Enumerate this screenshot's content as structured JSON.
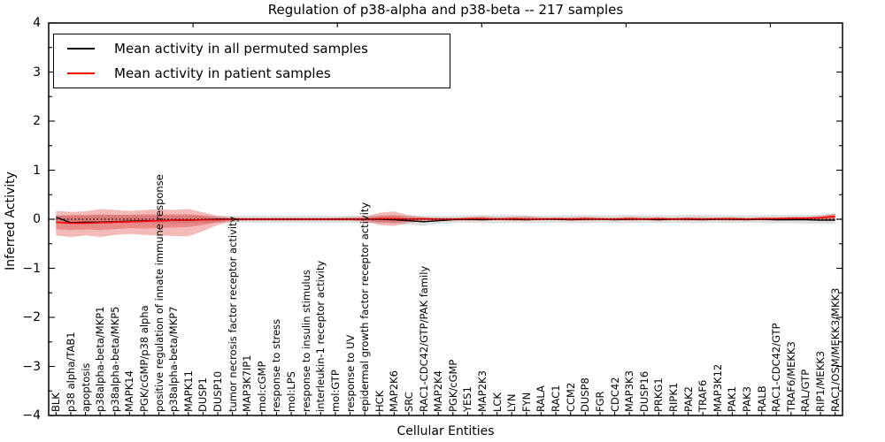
{
  "chart_data": {
    "type": "line",
    "title": "Regulation of p38-alpha and p38-beta -- 217 samples",
    "xlabel": "Cellular Entities",
    "ylabel": "Inferred Activity",
    "ylim": [
      -4,
      4
    ],
    "grid": false,
    "legend_position": "upper left",
    "zero_line": {
      "value": 0,
      "style": "dotted",
      "color": "#000000"
    },
    "y_ticks": [
      {
        "value": 4,
        "label": "4"
      },
      {
        "value": 3,
        "label": "3"
      },
      {
        "value": 2,
        "label": "2"
      },
      {
        "value": 1,
        "label": "1"
      },
      {
        "value": 0,
        "label": "0"
      },
      {
        "value": -1,
        "label": "−1"
      },
      {
        "value": -2,
        "label": "−2"
      },
      {
        "value": -3,
        "label": "−3"
      },
      {
        "value": -4,
        "label": "−4"
      }
    ],
    "categories": [
      "BLK",
      "p38 alpha/TAB1",
      "apoptosis",
      "p38alpha-beta/MKP1",
      "p38alpha-beta/MKP5",
      "MAPK14",
      "PGK/cGMP/p38 alpha",
      "positive regulation of innate immune response",
      "p38alpha-beta/MKP7",
      "MAPK11",
      "DUSP1",
      "DUSP10",
      "tumor necrosis factor receptor activity",
      "MAP3K7IP1",
      "mol:cGMP",
      "response to stress",
      "mol:LPS",
      "response to insulin stimulus",
      "interleukin-1 receptor activity",
      "mol:GTP",
      "response to UV",
      "epidermal growth factor receptor activity",
      "HCK",
      "MAP2K6",
      "SRC",
      "RAC1-CDC42/GTP/PAK family",
      "MAP2K4",
      "PGK/cGMP",
      "YES1",
      "MAP2K3",
      "LCK",
      "LYN",
      "FYN",
      "RALA",
      "RAC1",
      "CCM2",
      "DUSP8",
      "FGR",
      "CDC42",
      "MAP3K3",
      "DUSP16",
      "PRKG1",
      "RIPK1",
      "PAK2",
      "TRAF6",
      "MAP3K12",
      "PAK1",
      "PAK3",
      "RALB",
      "RAC1-CDC42/GTP",
      "TRAF6/MEKK3",
      "RAL/GTP",
      "RIP1/MEKK3",
      "RAC1/OSM/MEKK3/MKK3"
    ],
    "series": [
      {
        "name": "Mean activity in all permuted samples",
        "color": "#000000",
        "values": [
          0.04,
          -0.07,
          -0.06,
          -0.06,
          -0.05,
          -0.04,
          -0.03,
          -0.03,
          -0.02,
          -0.02,
          -0.01,
          0,
          0,
          0,
          0,
          0,
          0,
          0,
          0,
          0,
          0,
          0,
          0,
          -0.01,
          -0.03,
          -0.05,
          -0.03,
          -0.01,
          0,
          -0.01,
          0,
          0,
          -0.01,
          0,
          0,
          -0.01,
          0,
          0,
          -0.01,
          0,
          0,
          -0.01,
          0,
          0,
          -0.01,
          0,
          0,
          -0.01,
          0,
          -0.01,
          -0.01,
          -0.01,
          -0.02,
          -0.02
        ]
      },
      {
        "name": "Mean activity in patient samples",
        "color": "#ff0000",
        "values": [
          -0.06,
          -0.08,
          -0.08,
          -0.07,
          -0.06,
          -0.05,
          -0.04,
          -0.03,
          -0.02,
          -0.02,
          -0.01,
          -0.01,
          0,
          0,
          0,
          0,
          0,
          0,
          0,
          0,
          0,
          0,
          0.01,
          0.01,
          0,
          0.01,
          0,
          0,
          0.01,
          0.01,
          0,
          0.01,
          0,
          0,
          0.01,
          0,
          0.01,
          0,
          0,
          0.01,
          0,
          0.01,
          0,
          0.01,
          0,
          0.01,
          0.01,
          0,
          0.01,
          0.01,
          0.02,
          0.02,
          0.03,
          0.06
        ]
      }
    ],
    "bands": [
      {
        "name": "permuted samples confidence band",
        "color": "rgba(128,128,128,0.25)",
        "upper": [
          0.08,
          0.08,
          0.08,
          0.08,
          0.08,
          0.08,
          0.08,
          0.08,
          0.08,
          0.08,
          0.08,
          0.07,
          0.07,
          0.07,
          0.07,
          0.07,
          0.07,
          0.07,
          0.07,
          0.07,
          0.07,
          0.07,
          0.08,
          0.08,
          0.08,
          0.07,
          0.07,
          0.07,
          0.08,
          0.09,
          0.08,
          0.09,
          0.08,
          0.07,
          0.08,
          0.08,
          0.09,
          0.08,
          0.08,
          0.09,
          0.08,
          0.08,
          0.08,
          0.09,
          0.09,
          0.08,
          0.08,
          0.08,
          0.08,
          0.09,
          0.09,
          0.09,
          0.1,
          0.11
        ],
        "lower": [
          -0.08,
          -0.08,
          -0.08,
          -0.08,
          -0.08,
          -0.08,
          -0.08,
          -0.08,
          -0.08,
          -0.08,
          -0.08,
          -0.07,
          -0.07,
          -0.07,
          -0.07,
          -0.07,
          -0.07,
          -0.07,
          -0.07,
          -0.07,
          -0.07,
          -0.07,
          -0.08,
          -0.09,
          -0.11,
          -0.13,
          -0.1,
          -0.08,
          -0.07,
          -0.08,
          -0.08,
          -0.07,
          -0.08,
          -0.07,
          -0.07,
          -0.08,
          -0.08,
          -0.07,
          -0.08,
          -0.08,
          -0.07,
          -0.08,
          -0.07,
          -0.08,
          -0.08,
          -0.07,
          -0.08,
          -0.07,
          -0.08,
          -0.08,
          -0.08,
          -0.09,
          -0.09,
          -0.1
        ]
      },
      {
        "name": "patient samples confidence band (outer)",
        "color": "rgba(220,25,25,0.30)",
        "upper": [
          0.17,
          0.15,
          0.16,
          0.21,
          0.19,
          0.17,
          0.19,
          0.2,
          0.19,
          0.21,
          0.14,
          0.07,
          0.03,
          0.03,
          0.03,
          0.03,
          0.03,
          0.03,
          0.03,
          0.03,
          0.04,
          0.05,
          0.13,
          0.16,
          0.08,
          0.04,
          0.03,
          0.03,
          0.04,
          0.06,
          0.04,
          0.05,
          0.06,
          0.04,
          0.03,
          0.04,
          0.05,
          0.04,
          0.03,
          0.05,
          0.04,
          0.04,
          0.03,
          0.04,
          0.04,
          0.03,
          0.04,
          0.03,
          0.04,
          0.04,
          0.05,
          0.05,
          0.07,
          0.12
        ],
        "lower": [
          -0.33,
          -0.36,
          -0.33,
          -0.36,
          -0.32,
          -0.3,
          -0.32,
          -0.33,
          -0.34,
          -0.35,
          -0.24,
          -0.12,
          -0.04,
          -0.03,
          -0.03,
          -0.03,
          -0.03,
          -0.03,
          -0.03,
          -0.03,
          -0.03,
          -0.05,
          -0.12,
          -0.14,
          -0.07,
          -0.04,
          -0.03,
          -0.02,
          -0.03,
          -0.03,
          -0.02,
          -0.03,
          -0.03,
          -0.02,
          -0.02,
          -0.03,
          -0.03,
          -0.02,
          -0.02,
          -0.03,
          -0.02,
          -0.03,
          -0.02,
          -0.03,
          -0.02,
          -0.02,
          -0.03,
          -0.02,
          -0.02,
          -0.03,
          -0.02,
          -0.02,
          -0.01,
          -0.03
        ]
      },
      {
        "name": "patient samples confidence band (inner)",
        "color": "rgba(220,25,25,0.30)",
        "upper": [
          0.07,
          0.08,
          0.08,
          0.1,
          0.09,
          0.09,
          0.1,
          0.1,
          0.1,
          0.1,
          0.07,
          0.03,
          0.02,
          0.02,
          0.02,
          0.02,
          0.02,
          0.02,
          0.02,
          0.02,
          0.02,
          0.03,
          0.06,
          0.08,
          0.04,
          0.02,
          0.02,
          0.02,
          0.02,
          0.03,
          0.02,
          0.03,
          0.03,
          0.02,
          0.02,
          0.02,
          0.03,
          0.02,
          0.02,
          0.03,
          0.02,
          0.02,
          0.02,
          0.02,
          0.02,
          0.02,
          0.02,
          0.02,
          0.02,
          0.02,
          0.03,
          0.03,
          0.04,
          0.08
        ],
        "lower": [
          -0.2,
          -0.22,
          -0.21,
          -0.22,
          -0.2,
          -0.18,
          -0.19,
          -0.18,
          -0.17,
          -0.16,
          -0.12,
          -0.06,
          -0.02,
          -0.02,
          -0.02,
          -0.02,
          -0.02,
          -0.02,
          -0.02,
          -0.02,
          -0.02,
          -0.03,
          -0.06,
          -0.07,
          -0.04,
          -0.02,
          -0.02,
          -0.01,
          -0.02,
          -0.02,
          -0.01,
          -0.02,
          -0.02,
          -0.01,
          -0.01,
          -0.02,
          -0.02,
          -0.01,
          -0.01,
          -0.02,
          -0.01,
          -0.02,
          -0.01,
          -0.02,
          -0.01,
          -0.01,
          -0.02,
          -0.01,
          -0.01,
          -0.02,
          -0.01,
          -0.01,
          0,
          -0.02
        ]
      }
    ]
  }
}
